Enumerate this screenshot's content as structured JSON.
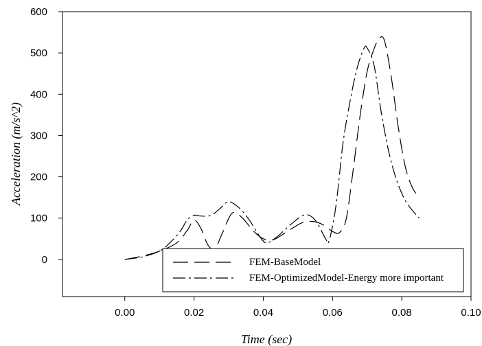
{
  "chart_data": {
    "type": "line",
    "xlabel": "Time (sec)",
    "ylabel": "Acceleration (m/s^2)",
    "xlim": [
      -0.018,
      0.1
    ],
    "ylim": [
      -90,
      600
    ],
    "x_ticks": [
      0.0,
      0.02,
      0.04,
      0.06,
      0.08,
      0.1
    ],
    "x_tick_labels": [
      "0.00",
      "0.02",
      "0.04",
      "0.06",
      "0.08",
      "0.10"
    ],
    "y_ticks": [
      0,
      100,
      200,
      300,
      400,
      500,
      600
    ],
    "y_tick_labels": [
      "0",
      "100",
      "200",
      "300",
      "400",
      "500",
      "600"
    ],
    "legend_position": "bottom-right",
    "grid": false,
    "series": [
      {
        "name": "FEM-BaseModel",
        "style": "dashed",
        "color": "#000000",
        "points": [
          [
            0.0,
            0
          ],
          [
            0.005,
            8
          ],
          [
            0.01,
            20
          ],
          [
            0.015,
            40
          ],
          [
            0.018,
            70
          ],
          [
            0.02,
            95
          ],
          [
            0.022,
            75
          ],
          [
            0.024,
            35
          ],
          [
            0.026,
            25
          ],
          [
            0.028,
            60
          ],
          [
            0.031,
            112
          ],
          [
            0.034,
            100
          ],
          [
            0.037,
            70
          ],
          [
            0.04,
            50
          ],
          [
            0.043,
            48
          ],
          [
            0.047,
            68
          ],
          [
            0.051,
            88
          ],
          [
            0.054,
            92
          ],
          [
            0.057,
            85
          ],
          [
            0.06,
            68
          ],
          [
            0.062,
            65
          ],
          [
            0.064,
            100
          ],
          [
            0.066,
            220
          ],
          [
            0.068,
            350
          ],
          [
            0.07,
            455
          ],
          [
            0.072,
            510
          ],
          [
            0.0735,
            535
          ],
          [
            0.075,
            530
          ],
          [
            0.077,
            440
          ],
          [
            0.079,
            320
          ],
          [
            0.081,
            225
          ],
          [
            0.083,
            175
          ],
          [
            0.085,
            150
          ]
        ]
      },
      {
        "name": "FEM-OptimizedModel-Energy more important",
        "style": "dashdot",
        "color": "#000000",
        "points": [
          [
            0.0,
            0
          ],
          [
            0.005,
            6
          ],
          [
            0.01,
            20
          ],
          [
            0.013,
            40
          ],
          [
            0.016,
            68
          ],
          [
            0.018,
            95
          ],
          [
            0.02,
            107
          ],
          [
            0.022,
            105
          ],
          [
            0.025,
            107
          ],
          [
            0.028,
            127
          ],
          [
            0.03,
            140
          ],
          [
            0.033,
            125
          ],
          [
            0.036,
            95
          ],
          [
            0.039,
            55
          ],
          [
            0.041,
            40
          ],
          [
            0.044,
            55
          ],
          [
            0.048,
            85
          ],
          [
            0.052,
            108
          ],
          [
            0.055,
            95
          ],
          [
            0.058,
            50
          ],
          [
            0.059,
            45
          ],
          [
            0.061,
            130
          ],
          [
            0.063,
            280
          ],
          [
            0.065,
            380
          ],
          [
            0.067,
            460
          ],
          [
            0.069,
            510
          ],
          [
            0.07,
            512
          ],
          [
            0.072,
            470
          ],
          [
            0.074,
            360
          ],
          [
            0.076,
            270
          ],
          [
            0.078,
            205
          ],
          [
            0.08,
            160
          ],
          [
            0.082,
            130
          ],
          [
            0.085,
            100
          ]
        ]
      }
    ]
  }
}
